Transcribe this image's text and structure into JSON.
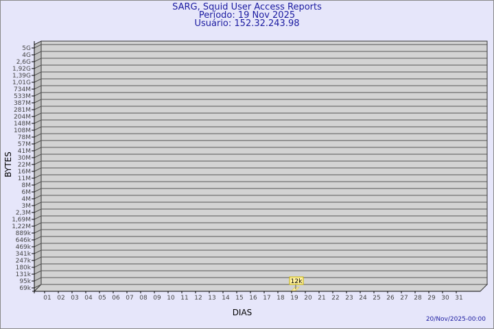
{
  "header": {
    "title": "SARG, Squid User Access Reports",
    "period": "Período: 19 Nov 2025",
    "user": "Usuário: 152.32.243.98"
  },
  "footer": {
    "timestamp": "20/Nov/2025-00:00"
  },
  "chart_data": {
    "type": "bar",
    "title": "SARG, Squid User Access Reports",
    "xlabel": "DIAS",
    "ylabel": "BYTES",
    "y_scale": "log",
    "grid": true,
    "y_ticks": [
      "5G",
      "4G",
      "2,6G",
      "1,92G",
      "1,39G",
      "1,01G",
      "734M",
      "533M",
      "387M",
      "281M",
      "204M",
      "148M",
      "108M",
      "78M",
      "57M",
      "41M",
      "30M",
      "22M",
      "16M",
      "11M",
      "8M",
      "6M",
      "4M",
      "3M",
      "2,3M",
      "1,69M",
      "1,22M",
      "889k",
      "646k",
      "469k",
      "341k",
      "247k",
      "180k",
      "131k",
      "95k",
      "69k"
    ],
    "categories": [
      "01",
      "02",
      "03",
      "04",
      "05",
      "06",
      "07",
      "08",
      "09",
      "10",
      "11",
      "12",
      "13",
      "14",
      "15",
      "16",
      "17",
      "18",
      "19",
      "20",
      "21",
      "22",
      "23",
      "24",
      "25",
      "26",
      "27",
      "28",
      "29",
      "30",
      "31"
    ],
    "values": [
      null,
      null,
      null,
      null,
      null,
      null,
      null,
      null,
      null,
      null,
      null,
      null,
      null,
      null,
      null,
      null,
      null,
      null,
      12000,
      null,
      null,
      null,
      null,
      null,
      null,
      null,
      null,
      null,
      null,
      null,
      null
    ],
    "data_labels": {
      "19": "12k"
    },
    "colors": {
      "wall": "#d3d3d3",
      "side": "#c0c0c0",
      "bar": "#fff0a0",
      "label_bg": "#fff0a0",
      "label_border": "#c8b400"
    }
  }
}
